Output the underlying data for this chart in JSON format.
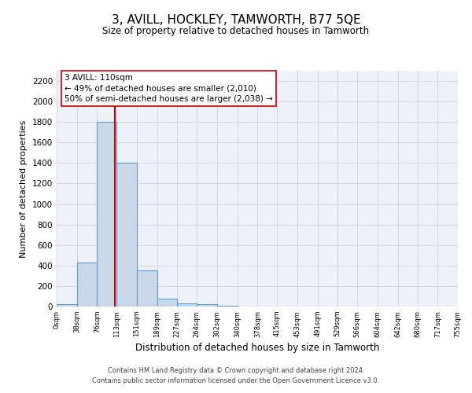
{
  "title": "3, AVILL, HOCKLEY, TAMWORTH, B77 5QE",
  "subtitle": "Size of property relative to detached houses in Tamworth",
  "bar_edges": [
    0,
    38,
    76,
    113,
    151,
    189,
    227,
    264,
    302,
    340,
    378,
    415,
    453,
    491,
    529,
    566,
    604,
    642,
    680,
    717,
    755
  ],
  "bar_heights": [
    20,
    430,
    1800,
    1400,
    350,
    80,
    30,
    20,
    5,
    0,
    0,
    0,
    0,
    0,
    0,
    0,
    0,
    0,
    0,
    0
  ],
  "bar_color": "#c8d8e8",
  "bar_edge_color": "#5b9bd5",
  "bar_linewidth": 0.8,
  "vline_x": 110,
  "vline_color": "#cc0000",
  "vline_linewidth": 1.5,
  "xlabel": "Distribution of detached houses by size in Tamworth",
  "ylabel": "Number of detached properties",
  "xlim": [
    0,
    755
  ],
  "ylim": [
    0,
    2300
  ],
  "yticks": [
    0,
    200,
    400,
    600,
    800,
    1000,
    1200,
    1400,
    1600,
    1800,
    2000,
    2200
  ],
  "xtick_labels": [
    "0sqm",
    "38sqm",
    "76sqm",
    "113sqm",
    "151sqm",
    "189sqm",
    "227sqm",
    "264sqm",
    "302sqm",
    "340sqm",
    "378sqm",
    "415sqm",
    "453sqm",
    "491sqm",
    "529sqm",
    "566sqm",
    "604sqm",
    "642sqm",
    "680sqm",
    "717sqm",
    "755sqm"
  ],
  "annotation_text": "3 AVILL: 110sqm\n← 49% of detached houses are smaller (2,010)\n50% of semi-detached houses are larger (2,038) →",
  "annotation_box_color": "#ffffff",
  "annotation_box_edge": "#cc0000",
  "annotation_fontsize": 7.5,
  "grid_color": "#d0d8e8",
  "background_color": "#eef2f8",
  "footnote1": "Contains HM Land Registry data © Crown copyright and database right 2024.",
  "footnote2": "Contains public sector information licensed under the Open Government Licence v3.0.",
  "title_fontsize": 11,
  "subtitle_fontsize": 8.5,
  "xlabel_fontsize": 8.5,
  "ylabel_fontsize": 8
}
